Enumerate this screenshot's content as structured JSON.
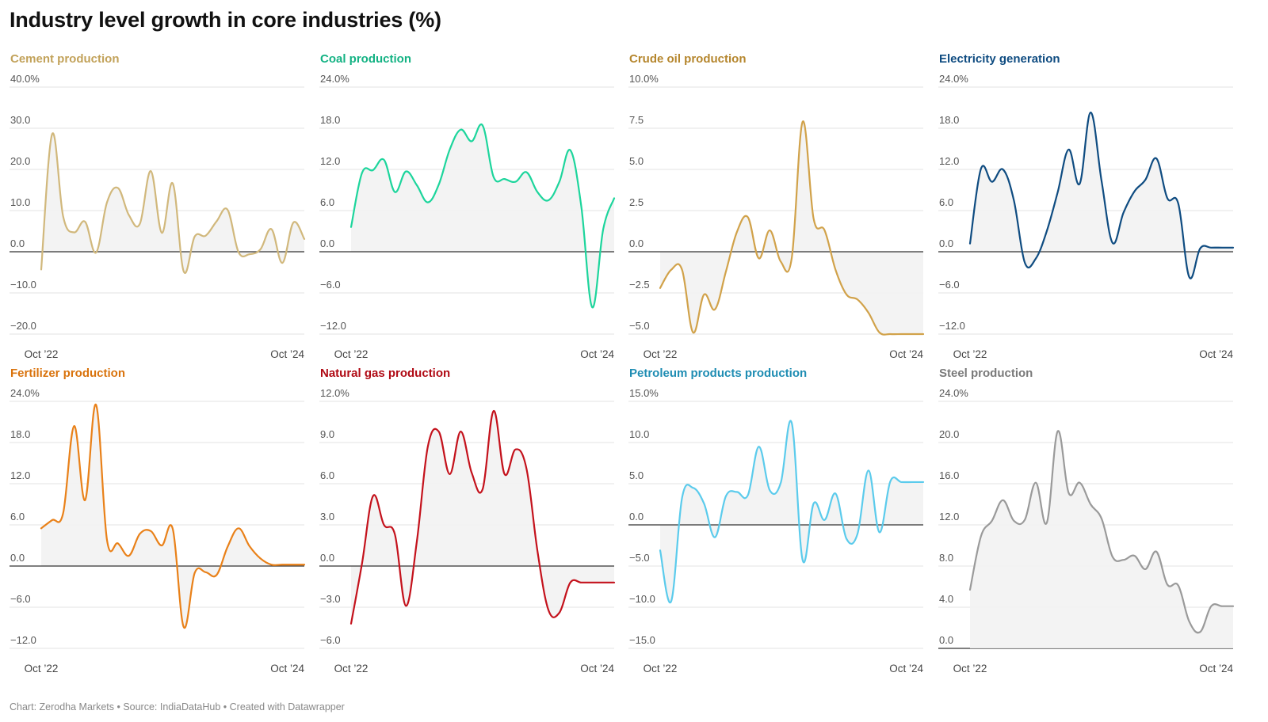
{
  "title": "Industry level growth in core industries (%)",
  "footer": "Chart: Zerodha Markets • Source: IndiaDataHub • Created with Datawrapper",
  "chart_data": [
    {
      "type": "area",
      "title": "Cement production",
      "color": "#c2a25a",
      "line_color": "#d1b87c",
      "y_ticks": [
        40.0,
        30.0,
        20.0,
        10.0,
        0.0,
        -10.0,
        -20.0
      ],
      "y_tick_labels": [
        "40.0%",
        "30.0",
        "20.0",
        "10.0",
        "0.0",
        "−10.0",
        "−20.0"
      ],
      "ylim": [
        -20,
        40
      ],
      "x_tick_labels": [
        "Oct ’22",
        "Oct ’24"
      ],
      "x": [
        "Oct '22",
        "Nov '22",
        "Dec '22",
        "Jan '23",
        "Feb '23",
        "Mar '23",
        "Apr '23",
        "May '23",
        "Jun '23",
        "Jul '23",
        "Aug '23",
        "Sep '23",
        "Oct '23",
        "Nov '23",
        "Dec '23",
        "Jan '24",
        "Feb '24",
        "Mar '24",
        "Apr '24",
        "May '24",
        "Jun '24",
        "Jul '24",
        "Aug '24",
        "Sep '24",
        "Oct '24"
      ],
      "values": [
        -4.3,
        28.6,
        8.6,
        4.7,
        7.3,
        -0.2,
        12.0,
        15.5,
        8.9,
        6.8,
        19.6,
        4.6,
        16.6,
        -4.8,
        3.7,
        3.9,
        7.4,
        10.2,
        -0.1,
        -0.6,
        0.6,
        5.5,
        -2.7,
        7.1,
        3.1
      ]
    },
    {
      "type": "area",
      "title": "Coal production",
      "color": "#13b283",
      "line_color": "#1dd59c",
      "y_ticks": [
        24.0,
        18.0,
        12.0,
        6.0,
        0.0,
        -6.0,
        -12.0
      ],
      "y_tick_labels": [
        "24.0%",
        "18.0",
        "12.0",
        "6.0",
        "0.0",
        "−6.0",
        "−12.0"
      ],
      "ylim": [
        -12,
        24
      ],
      "x_tick_labels": [
        "Oct ’22",
        "Oct ’24"
      ],
      "x": [
        "Oct '22",
        "Nov '22",
        "Dec '22",
        "Jan '23",
        "Feb '23",
        "Mar '23",
        "Apr '23",
        "May '23",
        "Jun '23",
        "Jul '23",
        "Aug '23",
        "Sep '23",
        "Oct '23",
        "Nov '23",
        "Dec '23",
        "Jan '24",
        "Feb '24",
        "Mar '24",
        "Apr '24",
        "May '24",
        "Jun '24",
        "Jul '24",
        "Aug '24",
        "Sep '24",
        "Oct '24"
      ],
      "values": [
        3.6,
        11.5,
        11.9,
        13.4,
        8.7,
        11.7,
        9.7,
        7.2,
        9.8,
        14.9,
        17.8,
        16.1,
        18.4,
        10.9,
        10.6,
        10.2,
        11.6,
        8.7,
        7.5,
        10.2,
        14.8,
        6.6,
        -8.1,
        3.3,
        7.8
      ]
    },
    {
      "type": "area",
      "title": "Crude oil production",
      "color": "#b5862d",
      "line_color": "#d1a24a",
      "y_ticks": [
        10.0,
        7.5,
        5.0,
        2.5,
        0.0,
        -2.5,
        -5.0
      ],
      "y_tick_labels": [
        "10.0%",
        "7.5",
        "5.0",
        "2.5",
        "0.0",
        "−2.5",
        "−5.0"
      ],
      "ylim": [
        -5,
        10
      ],
      "x_tick_labels": [
        "Oct ’22",
        "Oct ’24"
      ],
      "x": [
        "Oct '22",
        "Nov '22",
        "Dec '22",
        "Jan '23",
        "Feb '23",
        "Mar '23",
        "Apr '23",
        "May '23",
        "Jun '23",
        "Jul '23",
        "Aug '23",
        "Sep '23",
        "Oct '23",
        "Nov '23",
        "Dec '23",
        "Jan '24",
        "Feb '24",
        "Mar '24",
        "Apr '24",
        "May '24",
        "Jun '24",
        "Jul '24",
        "Aug '24",
        "Sep '24",
        "Oct '24"
      ],
      "values": [
        -2.2,
        -1.1,
        -1.1,
        -4.9,
        -2.6,
        -3.5,
        -1.2,
        1.2,
        2.1,
        -0.4,
        1.3,
        -0.6,
        -0.4,
        7.9,
        2.0,
        1.3,
        -1.1,
        -2.6,
        -2.9,
        -3.7,
        -4.9,
        -5.0,
        -5.0,
        -5.0,
        -5.0
      ]
    },
    {
      "type": "area",
      "title": "Electricity generation",
      "color": "#0f4c81",
      "line_color": "#0f4c81",
      "y_ticks": [
        24.0,
        18.0,
        12.0,
        6.0,
        0.0,
        -6.0,
        -12.0
      ],
      "y_tick_labels": [
        "24.0%",
        "18.0",
        "12.0",
        "6.0",
        "0.0",
        "−6.0",
        "−12.0"
      ],
      "ylim": [
        -12,
        24
      ],
      "x_tick_labels": [
        "Oct ’22",
        "Oct ’24"
      ],
      "x": [
        "Oct '22",
        "Nov '22",
        "Dec '22",
        "Jan '23",
        "Feb '23",
        "Mar '23",
        "Apr '23",
        "May '23",
        "Jun '23",
        "Jul '23",
        "Aug '23",
        "Sep '23",
        "Oct '23",
        "Nov '23",
        "Dec '23",
        "Jan '24",
        "Feb '24",
        "Mar '24",
        "Apr '24",
        "May '24",
        "Jun '24",
        "Jul '24",
        "Aug '24",
        "Sep '24",
        "Oct '24"
      ],
      "values": [
        1.2,
        12.1,
        10.2,
        12.0,
        7.5,
        -1.6,
        -1.0,
        3.0,
        8.7,
        14.9,
        9.9,
        20.3,
        10.3,
        1.3,
        5.7,
        8.8,
        10.5,
        13.6,
        7.8,
        7.0,
        -3.7,
        0.5,
        0.6,
        0.6,
        0.6
      ]
    },
    {
      "type": "area",
      "title": "Fertilizer production",
      "color": "#d9730d",
      "line_color": "#e98119",
      "y_ticks": [
        24.0,
        18.0,
        12.0,
        6.0,
        0.0,
        -6.0,
        -12.0
      ],
      "y_tick_labels": [
        "24.0%",
        "18.0",
        "12.0",
        "6.0",
        "0.0",
        "−6.0",
        "−12.0"
      ],
      "ylim": [
        -12,
        24
      ],
      "x_tick_labels": [
        "Oct ’22",
        "Oct ’24"
      ],
      "x": [
        "Oct '22",
        "Nov '22",
        "Dec '22",
        "Jan '23",
        "Feb '23",
        "Mar '23",
        "Apr '23",
        "May '23",
        "Jun '23",
        "Jul '23",
        "Aug '23",
        "Sep '23",
        "Oct '23",
        "Nov '23",
        "Dec '23",
        "Jan '24",
        "Feb '24",
        "Mar '24",
        "Apr '24",
        "May '24",
        "Jun '24",
        "Jul '24",
        "Aug '24",
        "Sep '24",
        "Oct '24"
      ],
      "values": [
        5.5,
        6.7,
        7.7,
        20.4,
        9.6,
        23.5,
        3.8,
        3.3,
        1.5,
        4.7,
        5.1,
        3.0,
        5.4,
        -8.9,
        -1.0,
        -0.9,
        -1.3,
        2.8,
        5.5,
        2.9,
        1.1,
        0.2,
        0.2,
        0.2,
        0.2
      ]
    },
    {
      "type": "area",
      "title": "Natural gas production",
      "color": "#b00b15",
      "line_color": "#c4121c",
      "y_ticks": [
        12.0,
        9.0,
        6.0,
        3.0,
        0.0,
        -3.0,
        -6.0
      ],
      "y_tick_labels": [
        "12.0%",
        "9.0",
        "6.0",
        "3.0",
        "0.0",
        "−3.0",
        "−6.0"
      ],
      "ylim": [
        -6,
        12
      ],
      "x_tick_labels": [
        "Oct ’22",
        "Oct ’24"
      ],
      "x": [
        "Oct '22",
        "Nov '22",
        "Dec '22",
        "Jan '23",
        "Feb '23",
        "Mar '23",
        "Apr '23",
        "May '23",
        "Jun '23",
        "Jul '23",
        "Aug '23",
        "Sep '23",
        "Oct '23",
        "Nov '23",
        "Dec '23",
        "Jan '24",
        "Feb '24",
        "Mar '24",
        "Apr '24",
        "May '24",
        "Jun '24",
        "Jul '24",
        "Aug '24",
        "Sep '24",
        "Oct '24"
      ],
      "values": [
        -4.2,
        0.2,
        5.1,
        3.0,
        2.3,
        -2.9,
        1.8,
        8.7,
        9.8,
        6.7,
        9.8,
        6.8,
        5.6,
        11.3,
        6.7,
        8.5,
        7.1,
        1.1,
        -3.2,
        -3.4,
        -1.2,
        -1.2,
        -1.2,
        -1.2,
        -1.2
      ]
    },
    {
      "type": "area",
      "title": "Petroleum products production",
      "color": "#1f8db3",
      "line_color": "#5bcbec",
      "y_ticks": [
        15.0,
        10.0,
        5.0,
        0.0,
        -5.0,
        -10.0,
        -15.0
      ],
      "y_tick_labels": [
        "15.0%",
        "10.0",
        "5.0",
        "0.0",
        "−5.0",
        "−10.0",
        "−15.0"
      ],
      "ylim": [
        -15,
        15
      ],
      "x_tick_labels": [
        "Oct ’22",
        "Oct ’24"
      ],
      "x": [
        "Oct '22",
        "Nov '22",
        "Dec '22",
        "Jan '23",
        "Feb '23",
        "Mar '23",
        "Apr '23",
        "May '23",
        "Jun '23",
        "Jul '23",
        "Aug '23",
        "Sep '23",
        "Oct '23",
        "Nov '23",
        "Dec '23",
        "Jan '24",
        "Feb '24",
        "Mar '24",
        "Apr '24",
        "May '24",
        "Jun '24",
        "Jul '24",
        "Aug '24",
        "Sep '24",
        "Oct '24"
      ],
      "values": [
        -3.1,
        -9.3,
        3.3,
        4.5,
        2.6,
        -1.5,
        3.5,
        4.0,
        3.6,
        9.5,
        4.2,
        5.1,
        12.4,
        -4.3,
        2.6,
        0.6,
        3.8,
        -1.7,
        -1.1,
        6.6,
        -0.9,
        5.3,
        5.2,
        5.2,
        5.2
      ]
    },
    {
      "type": "area",
      "title": "Steel production",
      "color": "#7a7a7a",
      "line_color": "#9a9a9a",
      "y_ticks": [
        24.0,
        20.0,
        16.0,
        12.0,
        8.0,
        4.0,
        0.0
      ],
      "y_tick_labels": [
        "24.0%",
        "20.0",
        "16.0",
        "12.0",
        "8.0",
        "4.0",
        "0.0"
      ],
      "ylim": [
        0,
        24
      ],
      "x_tick_labels": [
        "Oct ’22",
        "Oct ’24"
      ],
      "x": [
        "Oct '22",
        "Nov '22",
        "Dec '22",
        "Jan '23",
        "Feb '23",
        "Mar '23",
        "Apr '23",
        "May '23",
        "Jun '23",
        "Jul '23",
        "Aug '23",
        "Sep '23",
        "Oct '23",
        "Nov '23",
        "Dec '23",
        "Jan '24",
        "Feb '24",
        "Mar '24",
        "Apr '24",
        "May '24",
        "Jun '24",
        "Jul '24",
        "Aug '24",
        "Sep '24",
        "Oct '24"
      ],
      "values": [
        5.7,
        10.9,
        12.4,
        14.4,
        12.4,
        12.5,
        16.1,
        12.2,
        21.1,
        15.1,
        16.1,
        14.0,
        12.6,
        8.9,
        8.6,
        9.0,
        7.7,
        9.4,
        6.2,
        6.1,
        2.6,
        1.6,
        4.1,
        4.1,
        4.1
      ]
    }
  ]
}
